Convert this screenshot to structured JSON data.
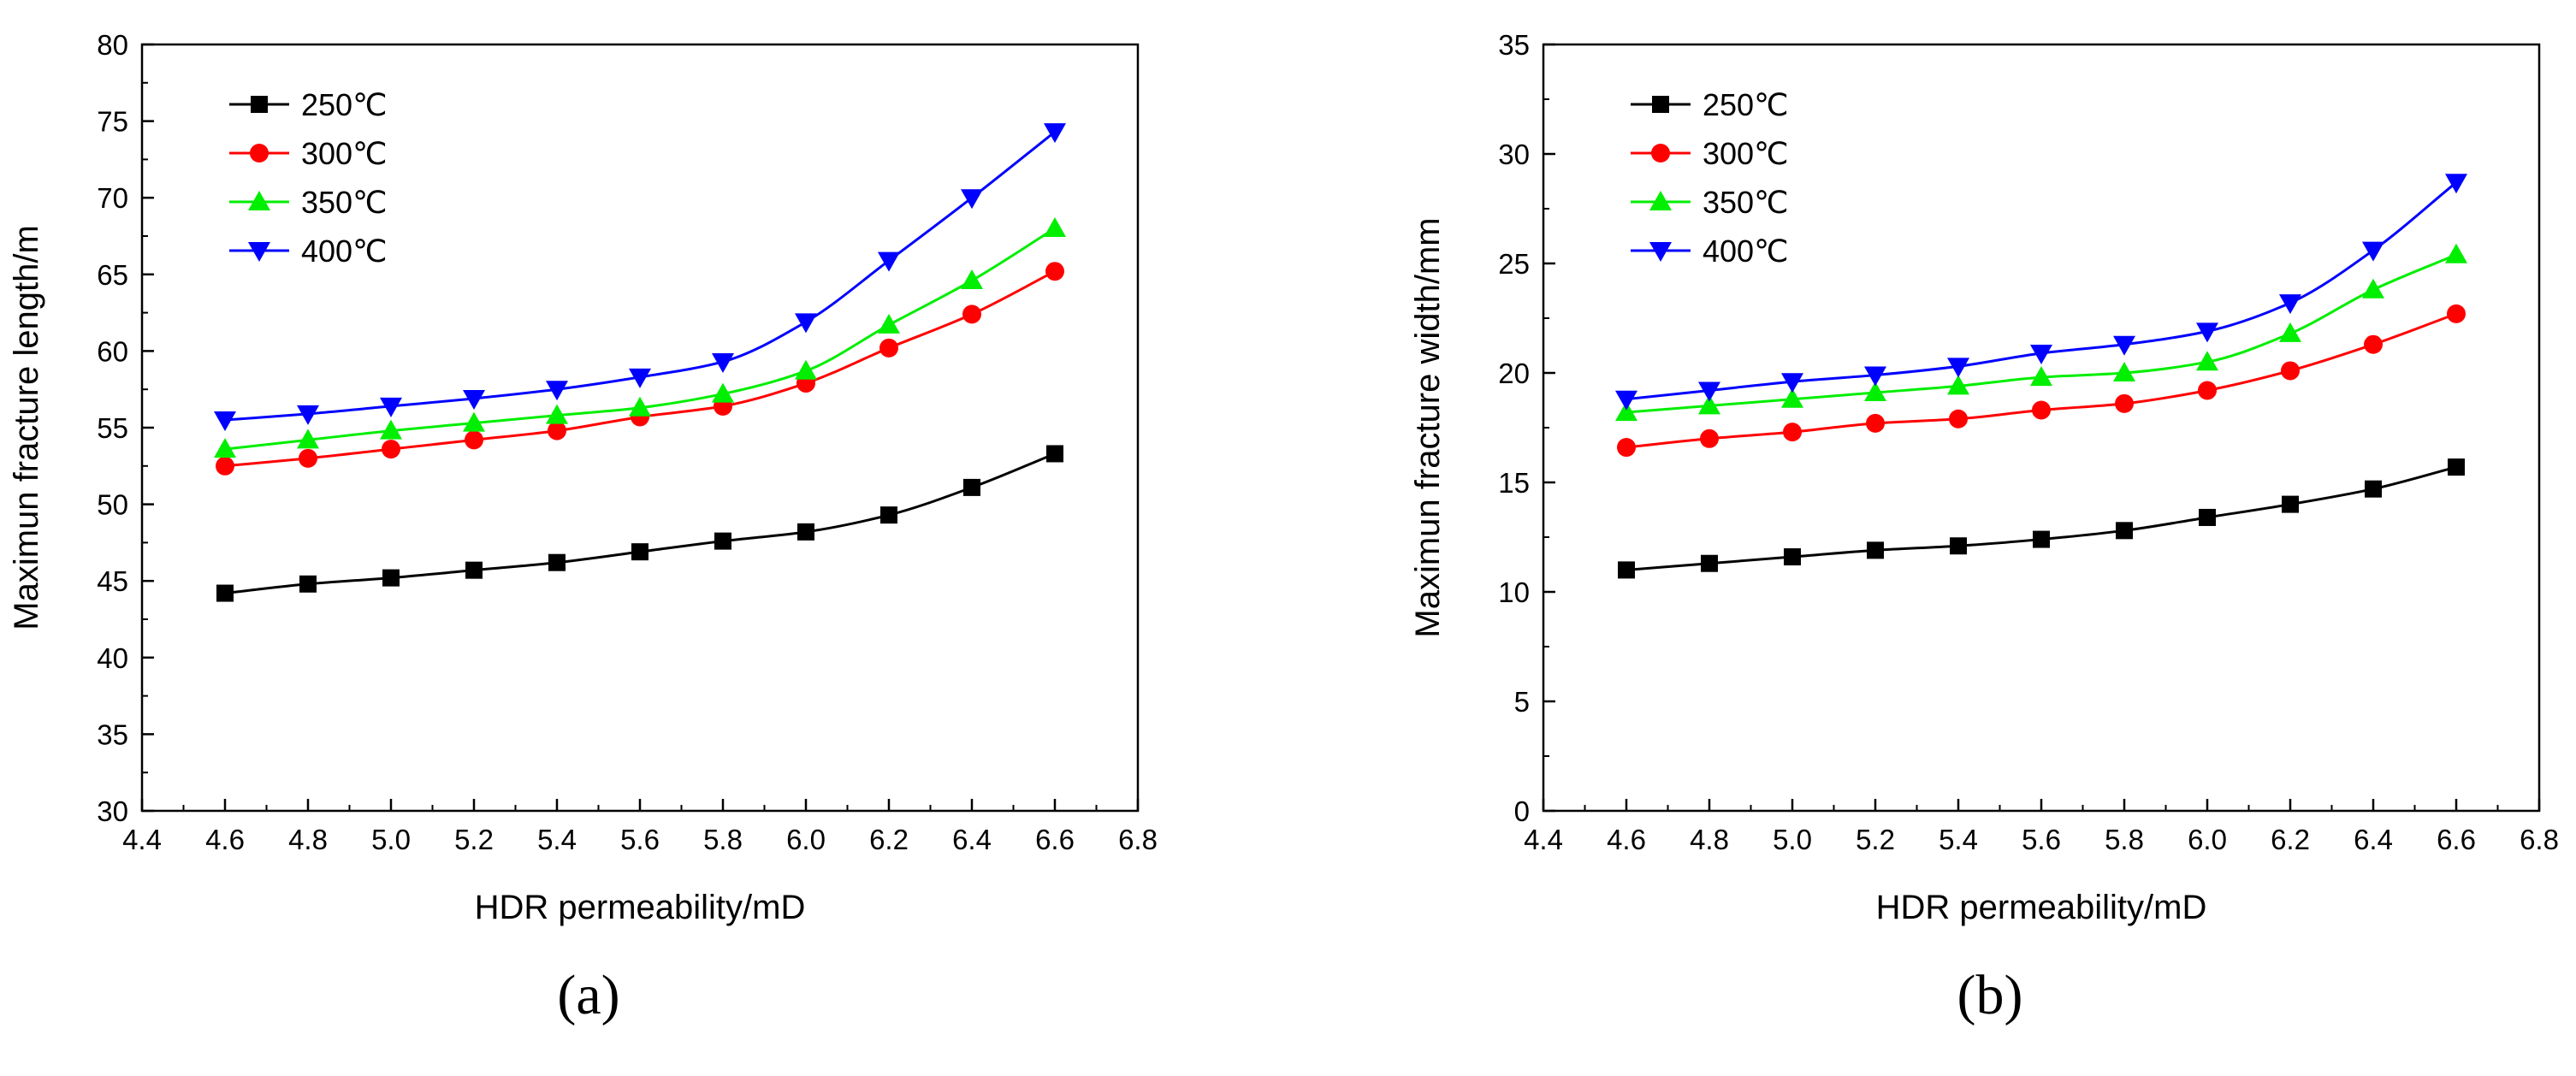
{
  "chart_data": [
    {
      "type": "line",
      "panel_label": "(a)",
      "title": "",
      "xlabel": "HDR permeability/mD",
      "ylabel": "Maximun fracture length/m",
      "xlim": [
        4.4,
        6.8
      ],
      "ylim": [
        30,
        80
      ],
      "xticks": [
        "4.4",
        "4.6",
        "4.8",
        "5.0",
        "5.2",
        "5.4",
        "5.6",
        "5.8",
        "6.0",
        "6.2",
        "6.4",
        "6.6",
        "6.8"
      ],
      "yticks": [
        "30",
        "35",
        "40",
        "45",
        "50",
        "55",
        "60",
        "65",
        "70",
        "75",
        "80"
      ],
      "grid": false,
      "legend_position": "top-left",
      "x": [
        4.6,
        4.8,
        5.0,
        5.2,
        5.4,
        5.6,
        5.8,
        6.0,
        6.2,
        6.4,
        6.6
      ],
      "series": [
        {
          "name": "250℃",
          "color": "#000000",
          "marker": "square",
          "values": [
            44.2,
            44.8,
            45.2,
            45.7,
            46.2,
            46.9,
            47.6,
            48.2,
            49.3,
            51.1,
            53.3
          ]
        },
        {
          "name": "300℃",
          "color": "#ff0000",
          "marker": "circle",
          "values": [
            52.5,
            53.0,
            53.6,
            54.2,
            54.8,
            55.7,
            56.4,
            57.9,
            60.2,
            62.4,
            65.2
          ]
        },
        {
          "name": "350℃",
          "color": "#00ee00",
          "marker": "triangle-up",
          "values": [
            53.6,
            54.2,
            54.8,
            55.3,
            55.8,
            56.3,
            57.2,
            58.7,
            61.7,
            64.6,
            68.0
          ]
        },
        {
          "name": "400℃",
          "color": "#0000ff",
          "marker": "triangle-down",
          "values": [
            55.5,
            55.9,
            56.4,
            56.9,
            57.5,
            58.3,
            59.3,
            61.9,
            65.9,
            70.0,
            74.3
          ]
        }
      ]
    },
    {
      "type": "line",
      "panel_label": "(b)",
      "title": "",
      "xlabel": "HDR permeability/mD",
      "ylabel": "Maximun fracture width/mm",
      "xlim": [
        4.4,
        6.8
      ],
      "ylim": [
        0,
        35
      ],
      "xticks": [
        "4.4",
        "4.6",
        "4.8",
        "5.0",
        "5.2",
        "5.4",
        "5.6",
        "5.8",
        "6.0",
        "6.2",
        "6.4",
        "6.6",
        "6.8"
      ],
      "yticks": [
        "0",
        "5",
        "10",
        "15",
        "20",
        "25",
        "30",
        "35"
      ],
      "grid": false,
      "legend_position": "top-left",
      "x": [
        4.6,
        4.8,
        5.0,
        5.2,
        5.4,
        5.6,
        5.8,
        6.0,
        6.2,
        6.4,
        6.6
      ],
      "series": [
        {
          "name": "250℃",
          "color": "#000000",
          "marker": "square",
          "values": [
            11.0,
            11.3,
            11.6,
            11.9,
            12.1,
            12.4,
            12.8,
            13.4,
            14.0,
            14.7,
            15.7
          ]
        },
        {
          "name": "300℃",
          "color": "#ff0000",
          "marker": "circle",
          "values": [
            16.6,
            17.0,
            17.3,
            17.7,
            17.9,
            18.3,
            18.6,
            19.2,
            20.1,
            21.3,
            22.7
          ]
        },
        {
          "name": "350℃",
          "color": "#00ee00",
          "marker": "triangle-up",
          "values": [
            18.2,
            18.5,
            18.8,
            19.1,
            19.4,
            19.8,
            20.0,
            20.5,
            21.8,
            23.8,
            25.4
          ]
        },
        {
          "name": "400℃",
          "color": "#0000ff",
          "marker": "triangle-down",
          "values": [
            18.8,
            19.2,
            19.6,
            19.9,
            20.3,
            20.9,
            21.3,
            21.9,
            23.2,
            25.6,
            28.7
          ]
        }
      ]
    }
  ]
}
